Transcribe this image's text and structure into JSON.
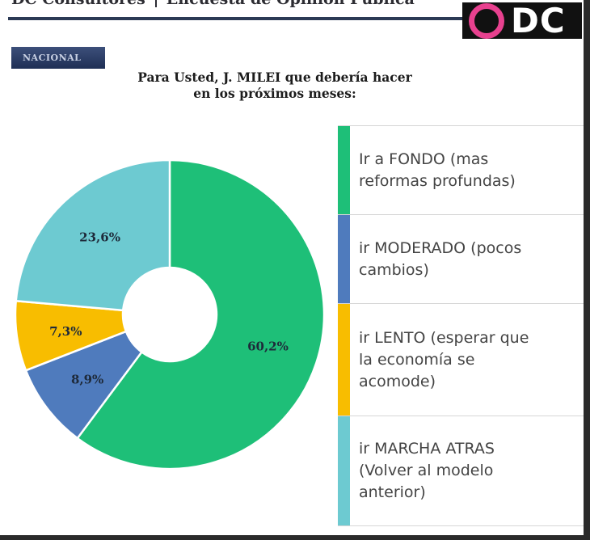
{
  "header": {
    "org": "DC Consultores",
    "survey": "Encuesta de Opinion Publica"
  },
  "logo": {
    "text": "DC",
    "ring_color": "#e8418f"
  },
  "tag": "NACIONAL",
  "chart_data": {
    "type": "pie",
    "donut": true,
    "title_lines": [
      "Para Usted, J. MILEI que debería hacer",
      "en los próximos meses:"
    ],
    "slices": [
      {
        "label_lines": [
          "Ir a FONDO (mas",
          "reformas profundas)"
        ],
        "value": 60.2,
        "display": "60,2%",
        "color": "#1ebf78"
      },
      {
        "label_lines": [
          "ir MODERADO (pocos",
          "cambios)"
        ],
        "value": 8.9,
        "display": "8,9%",
        "color": "#4f7bbd"
      },
      {
        "label_lines": [
          "ir LENTO (esperar que",
          "la economía se",
          "acomode)"
        ],
        "value": 7.3,
        "display": "7,3%",
        "color": "#f8bd00"
      },
      {
        "label_lines": [
          "ir MARCHA ATRAS",
          "(Volver al modelo",
          "anterior)"
        ],
        "value": 23.6,
        "display": "23,6%",
        "color": "#6dcad1"
      }
    ],
    "legend_placement": "right"
  }
}
